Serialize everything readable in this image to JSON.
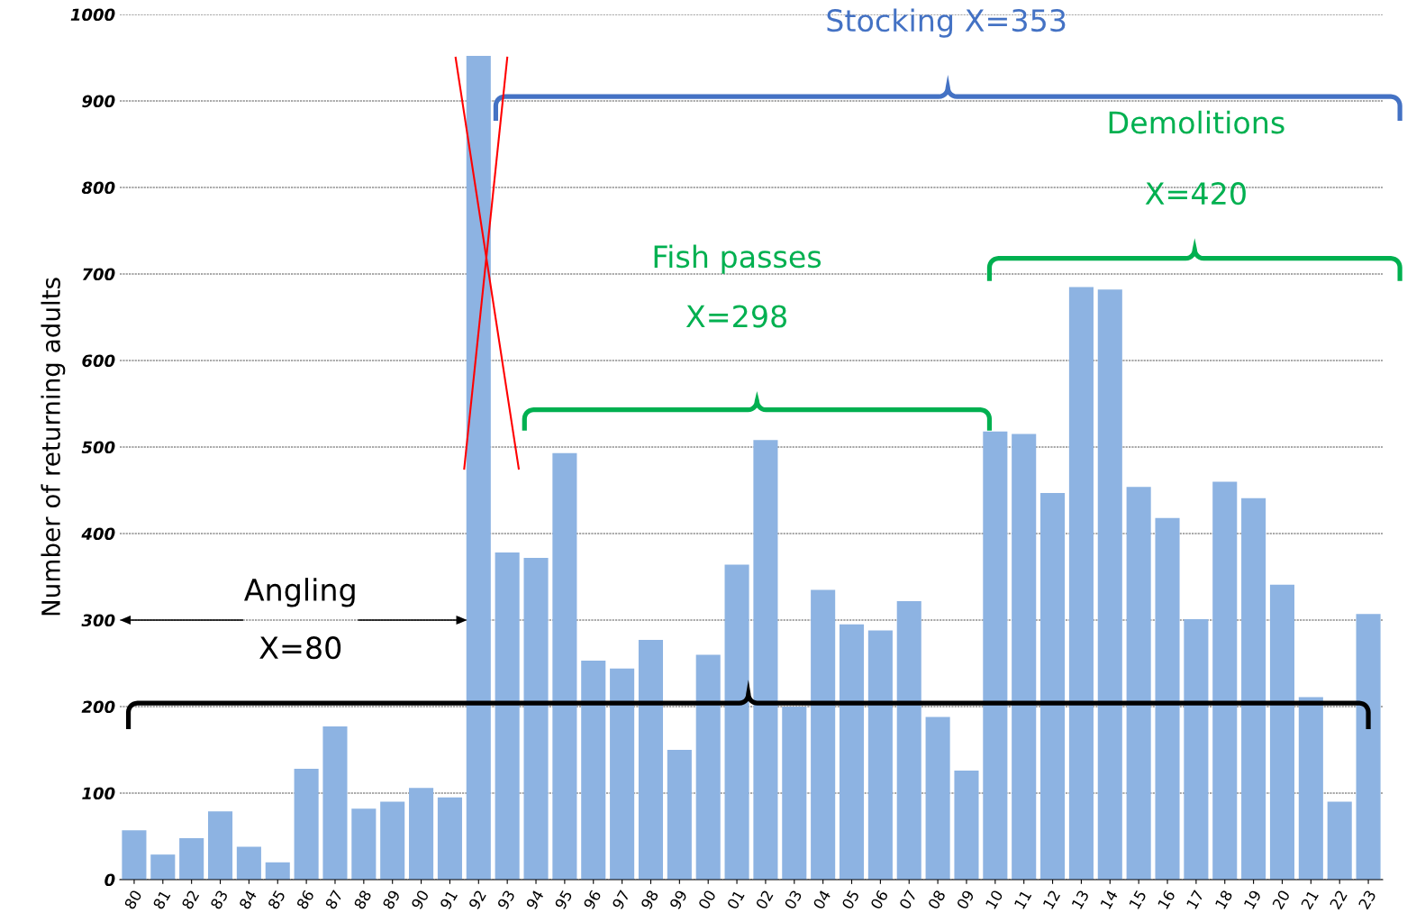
{
  "chart_data": {
    "type": "bar",
    "ylabel": "Number of returning adults",
    "categories": [
      "80",
      "81",
      "82",
      "83",
      "84",
      "85",
      "86",
      "87",
      "88",
      "89",
      "90",
      "91",
      "92",
      "93",
      "94",
      "95",
      "96",
      "97",
      "98",
      "99",
      "00",
      "01",
      "02",
      "03",
      "04",
      "05",
      "06",
      "07",
      "08",
      "09",
      "10",
      "11",
      "12",
      "13",
      "14",
      "15",
      "16",
      "17",
      "18",
      "19",
      "20",
      "21",
      "22",
      "23"
    ],
    "values": [
      57,
      29,
      48,
      79,
      38,
      20,
      128,
      177,
      82,
      90,
      106,
      95,
      952,
      378,
      372,
      493,
      253,
      244,
      277,
      150,
      260,
      364,
      508,
      200,
      335,
      295,
      288,
      322,
      188,
      126,
      518,
      515,
      447,
      685,
      682,
      454,
      418,
      301,
      460,
      441,
      341,
      211,
      90,
      307
    ],
    "color": "#8db3e2",
    "ylim": [
      0,
      1000
    ],
    "yticks": [
      0,
      100,
      200,
      300,
      400,
      500,
      600,
      700,
      800,
      900,
      1000
    ],
    "grid": "y",
    "annotations": [
      "Stocking X=353",
      "Demolitions",
      "X=420",
      "Fish passes",
      "X=298",
      "Angling",
      "X=80"
    ]
  }
}
